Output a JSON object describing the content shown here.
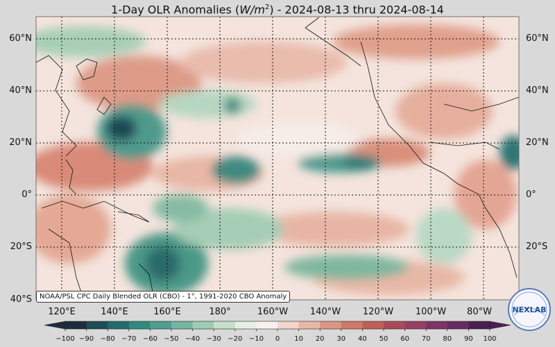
{
  "title": {
    "prefix": "1-Day OLR Anomalies (",
    "unit_base": "W/m",
    "unit_exp": "2",
    "suffix": ") - 2024-08-13 thru 2024-08-14"
  },
  "map": {
    "lat_labels": [
      "60°N",
      "40°N",
      "20°N",
      "0°",
      "20°S",
      "40°S"
    ],
    "lon_labels": [
      "120°E",
      "140°E",
      "160°E",
      "180°",
      "160°W",
      "140°W",
      "120°W",
      "100°W",
      "80°W"
    ],
    "anomaly_features": [
      {
        "type": "negative",
        "strength": "strong",
        "location": "western Pacific near 20°N 140°E"
      },
      {
        "type": "negative",
        "strength": "strong",
        "location": "south Pacific near 25°S 160°E"
      },
      {
        "type": "negative",
        "strength": "moderate",
        "location": "ITCZ band near 10°N 130°W"
      },
      {
        "type": "negative",
        "strength": "moderate",
        "location": "central Pacific near 10°N 175°E"
      },
      {
        "type": "negative",
        "strength": "moderate",
        "location": "south Pacific band near 28°S 130°W"
      },
      {
        "type": "positive",
        "strength": "moderate",
        "location": "Philippine Sea near 10°N 125°E"
      },
      {
        "type": "positive",
        "strength": "moderate",
        "location": "north Pacific near 40°N 160°E"
      }
    ]
  },
  "source_text": "NOAA/PSL CPC Daily Blended OLR (CBO) - 1°, 1991-2020 CBO Anomaly",
  "logo": {
    "text": "NEXLAB",
    "icon": "nexlab-logo-icon"
  },
  "colorbar": {
    "ticks": [
      "−100",
      "−90",
      "−80",
      "−70",
      "−60",
      "−50",
      "−40",
      "−30",
      "−20",
      "−10",
      "0",
      "10",
      "20",
      "30",
      "40",
      "50",
      "60",
      "70",
      "80",
      "90",
      "100"
    ],
    "min": -100,
    "max": 100,
    "colors": [
      "#1d2d3a",
      "#1f4d55",
      "#236a6a",
      "#2f8a80",
      "#4f9e8f",
      "#74b59f",
      "#9fcbb4",
      "#c6e0cc",
      "#e6efe6",
      "#f9f1ee",
      "#f3d6cc",
      "#e9b7a6",
      "#dc9884",
      "#cf7a66",
      "#c05e58",
      "#ab4b5a",
      "#963f62",
      "#7e3466",
      "#662b63",
      "#4b1f52"
    ]
  }
}
